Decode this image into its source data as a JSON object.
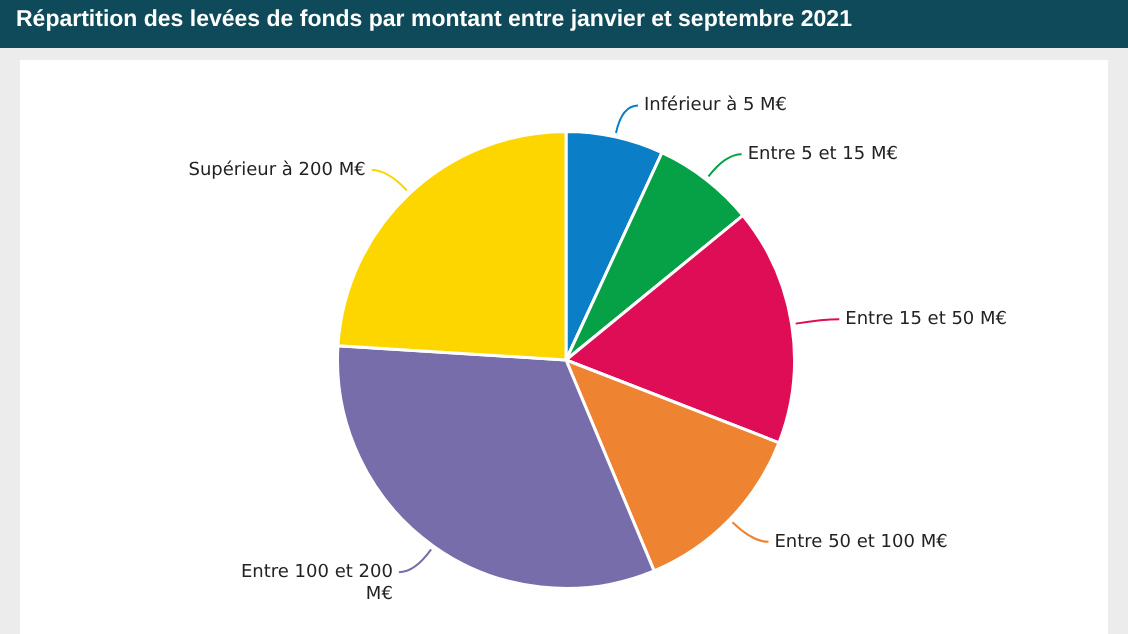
{
  "chart_data": {
    "type": "pie",
    "title": "Répartition des levées de fonds par montant entre janvier et septembre 2021",
    "categories": [
      "Inférieur à 5 M€",
      "Entre 5 et 15 M€",
      "Entre 15 et 50 M€",
      "Entre 50 et 100 M€",
      "Entre 100 et 200 M€",
      "Supérieur à 200 M€"
    ],
    "values": [
      6.9,
      7.2,
      16.8,
      12.8,
      32.3,
      24.0
    ],
    "colors": [
      "#0a7fc8",
      "#06a046",
      "#df0d55",
      "#ee8431",
      "#786dab",
      "#fdd600"
    ],
    "legend": false
  }
}
